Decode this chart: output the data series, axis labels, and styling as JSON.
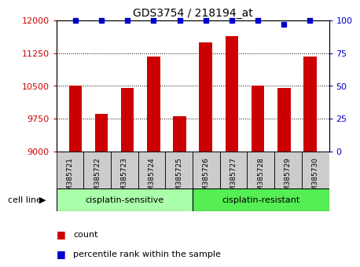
{
  "title": "GDS3754 / 218194_at",
  "samples": [
    "GSM385721",
    "GSM385722",
    "GSM385723",
    "GSM385724",
    "GSM385725",
    "GSM385726",
    "GSM385727",
    "GSM385728",
    "GSM385729",
    "GSM385730"
  ],
  "counts": [
    10500,
    9850,
    10450,
    11175,
    9800,
    11500,
    11650,
    10500,
    10450,
    11175
  ],
  "percentiles": [
    100,
    100,
    100,
    100,
    100,
    100,
    100,
    100,
    97,
    100
  ],
  "bar_color": "#cc0000",
  "dot_color": "#0000cc",
  "groups": [
    {
      "label": "cisplatin-sensitive",
      "start": 0,
      "end": 5,
      "color": "#aaffaa"
    },
    {
      "label": "cisplatin-resistant",
      "start": 5,
      "end": 10,
      "color": "#55ee55"
    }
  ],
  "group_label": "cell line",
  "ylim_left": [
    9000,
    12000
  ],
  "yticks_left": [
    9000,
    9750,
    10500,
    11250,
    12000
  ],
  "ylim_right": [
    0,
    100
  ],
  "yticks_right": [
    0,
    25,
    50,
    75,
    100
  ],
  "ytick_color_left": "#cc0000",
  "ytick_color_right": "#0000cc",
  "background_color": "#ffffff",
  "plot_bg_color": "#ffffff",
  "tick_box_color": "#cccccc",
  "legend_items": [
    {
      "label": "count",
      "color": "#cc0000"
    },
    {
      "label": "percentile rank within the sample",
      "color": "#0000cc"
    }
  ]
}
